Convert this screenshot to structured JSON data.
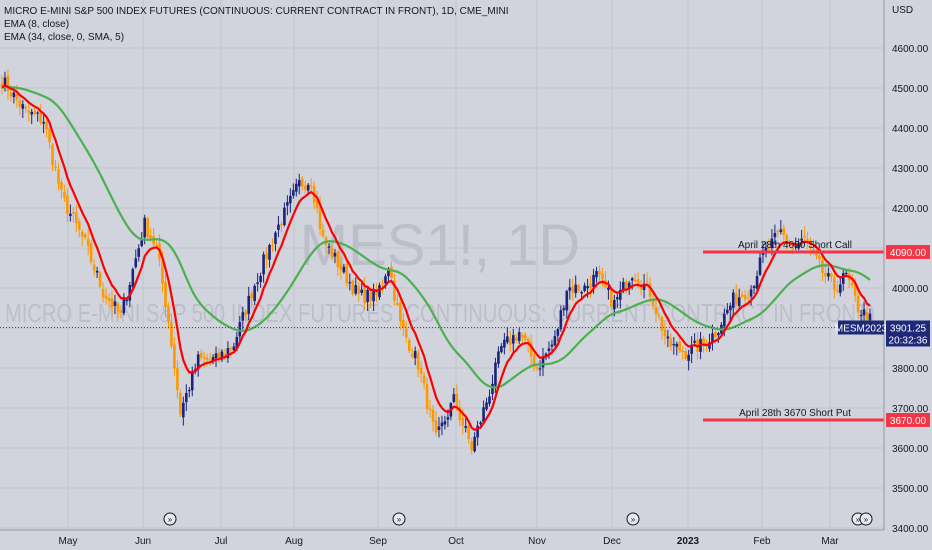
{
  "header": {
    "title": "MICRO E-MINI S&P 500 INDEX FUTURES (CONTINUOUS: CURRENT CONTRACT IN FRONT), 1D, CME_MINI",
    "indicator1": "EMA (8, close)",
    "indicator2": "EMA (34, close, 0, SMA, 5)"
  },
  "watermark": {
    "symbol": "MES1!, 1D",
    "name": "MICRO E-MINI S&P 500 INDEX FUTURES (CONTINUOUS: CURRENT CONTRACT IN FRONT)"
  },
  "colors": {
    "background": "#d1d4dc",
    "up_candle": "#1a237e",
    "down_candle": "#ff9800",
    "ema_fast": "#ff0000",
    "ema_slow": "#4caf50",
    "level_line": "#f23645",
    "price_label": "#1e2a78"
  },
  "chart_data": {
    "type": "candlestick",
    "title": "MICRO E-MINI S&P 500 INDEX FUTURES (CONTINUOUS: CURRENT CONTRACT IN FRONT), 1D, CME_MINI",
    "y_axis_unit": "USD",
    "ylim": [
      3400,
      4700
    ],
    "y_ticks": [
      3400,
      3500,
      3600,
      3700,
      3800,
      3900,
      4000,
      4100,
      4200,
      4300,
      4400,
      4500,
      4600
    ],
    "y_tick_labels": [
      "3400.00",
      "3500.00",
      "3600.00",
      "3700.00",
      "3800.00",
      "3900.00",
      "4000.00",
      "4100.00",
      "4200.00",
      "4300.00",
      "4400.00",
      "4500.00",
      "4600.00"
    ],
    "x_axis_labels": [
      "May",
      "Jun",
      "Jul",
      "Aug",
      "Sep",
      "Oct",
      "Nov",
      "Dec",
      "2023",
      "Feb",
      "Mar"
    ],
    "grid": true,
    "anchors": [
      [
        0,
        4520
      ],
      [
        8,
        4440
      ],
      [
        14,
        4420
      ],
      [
        20,
        4230
      ],
      [
        28,
        4110
      ],
      [
        34,
        3990
      ],
      [
        40,
        3930
      ],
      [
        48,
        4160
      ],
      [
        52,
        4100
      ],
      [
        56,
        3920
      ],
      [
        60,
        3690
      ],
      [
        66,
        3820
      ],
      [
        72,
        3820
      ],
      [
        78,
        3860
      ],
      [
        84,
        3990
      ],
      [
        92,
        4140
      ],
      [
        100,
        4260
      ],
      [
        104,
        4270
      ],
      [
        108,
        4120
      ],
      [
        114,
        4050
      ],
      [
        120,
        3980
      ],
      [
        126,
        3980
      ],
      [
        130,
        4060
      ],
      [
        134,
        3910
      ],
      [
        140,
        3810
      ],
      [
        146,
        3620
      ],
      [
        152,
        3720
      ],
      [
        158,
        3600
      ],
      [
        164,
        3740
      ],
      [
        168,
        3850
      ],
      [
        174,
        3890
      ],
      [
        180,
        3800
      ],
      [
        186,
        3870
      ],
      [
        190,
        4000
      ],
      [
        196,
        4000
      ],
      [
        200,
        4030
      ],
      [
        206,
        3960
      ],
      [
        212,
        4040
      ],
      [
        218,
        3990
      ],
      [
        224,
        3860
      ],
      [
        230,
        3840
      ],
      [
        236,
        3860
      ],
      [
        240,
        3890
      ],
      [
        246,
        3970
      ],
      [
        252,
        4000
      ],
      [
        256,
        4080
      ],
      [
        262,
        4140
      ],
      [
        266,
        4100
      ],
      [
        270,
        4120
      ],
      [
        276,
        4040
      ],
      [
        280,
        4000
      ],
      [
        284,
        4030
      ],
      [
        288,
        3950
      ],
      [
        292,
        3920
      ]
    ],
    "n_bars": 293,
    "series": [
      {
        "name": "EMA (8, close)",
        "color": "#ff0000"
      },
      {
        "name": "EMA (34, close, 0, SMA, 5)",
        "color": "#4caf50"
      }
    ],
    "horizontal_levels": [
      {
        "value": 4090,
        "label": "April 28th 4090 Short Call",
        "price_label": "4090.00"
      },
      {
        "value": 3670,
        "label": "April 28th 3670 Short Put",
        "price_label": "3670.00"
      }
    ],
    "last_price": {
      "symbol": "MESM2023",
      "value": 3901.25,
      "value_label": "3901.25",
      "countdown": "20:32:36"
    }
  }
}
